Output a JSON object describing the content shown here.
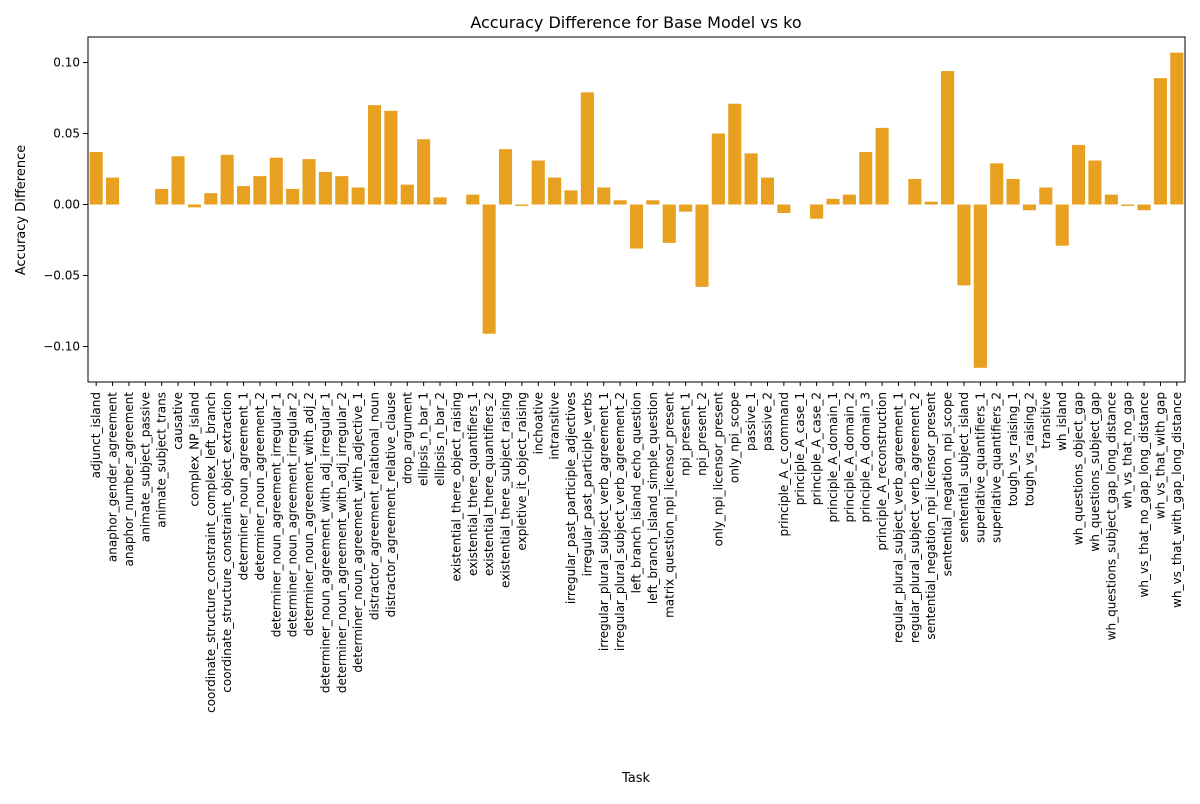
{
  "chart_data": {
    "type": "bar",
    "title": "Accuracy Difference for Base Model vs ko",
    "xlabel": "Task",
    "ylabel": "Accuracy Difference",
    "ylim": [
      -0.125,
      0.118
    ],
    "yticks": [
      -0.1,
      -0.05,
      0.0,
      0.05,
      0.1
    ],
    "ytick_labels": [
      "−0.10",
      "−0.05",
      "0.00",
      "0.05",
      "0.10"
    ],
    "grid": false,
    "legend": "none",
    "bar_color": "#e8a021",
    "categories": [
      "adjunct_island",
      "anaphor_gender_agreement",
      "anaphor_number_agreement",
      "animate_subject_passive",
      "animate_subject_trans",
      "causative",
      "complex_NP_island",
      "coordinate_structure_constraint_complex_left_branch",
      "coordinate_structure_constraint_object_extraction",
      "determiner_noun_agreement_1",
      "determiner_noun_agreement_2",
      "determiner_noun_agreement_irregular_1",
      "determiner_noun_agreement_irregular_2",
      "determiner_noun_agreement_with_adj_2",
      "determiner_noun_agreement_with_adj_irregular_1",
      "determiner_noun_agreement_with_adj_irregular_2",
      "determiner_noun_agreement_with_adjective_1",
      "distractor_agreement_relational_noun",
      "distractor_agreement_relative_clause",
      "drop_argument",
      "ellipsis_n_bar_1",
      "ellipsis_n_bar_2",
      "existential_there_object_raising",
      "existential_there_quantifiers_1",
      "existential_there_quantifiers_2",
      "existential_there_subject_raising",
      "expletive_it_object_raising",
      "inchoative",
      "intransitive",
      "irregular_past_participle_adjectives",
      "irregular_past_participle_verbs",
      "irregular_plural_subject_verb_agreement_1",
      "irregular_plural_subject_verb_agreement_2",
      "left_branch_island_echo_question",
      "left_branch_island_simple_question",
      "matrix_question_npi_licensor_present",
      "npi_present_1",
      "npi_present_2",
      "only_npi_licensor_present",
      "only_npi_scope",
      "passive_1",
      "passive_2",
      "principle_A_c_command",
      "principle_A_case_1",
      "principle_A_case_2",
      "principle_A_domain_1",
      "principle_A_domain_2",
      "principle_A_domain_3",
      "principle_A_reconstruction",
      "regular_plural_subject_verb_agreement_1",
      "regular_plural_subject_verb_agreement_2",
      "sentential_negation_npi_licensor_present",
      "sentential_negation_npi_scope",
      "sentential_subject_island",
      "superlative_quantifiers_1",
      "superlative_quantifiers_2",
      "tough_vs_raising_1",
      "tough_vs_raising_2",
      "transitive",
      "wh_island",
      "wh_questions_object_gap",
      "wh_questions_subject_gap",
      "wh_questions_subject_gap_long_distance",
      "wh_vs_that_no_gap",
      "wh_vs_that_no_gap_long_distance",
      "wh_vs_that_with_gap",
      "wh_vs_that_with_gap_long_distance"
    ],
    "values": [
      0.037,
      0.019,
      0.0,
      0.0,
      0.011,
      0.034,
      -0.002,
      0.008,
      0.035,
      0.013,
      0.02,
      0.033,
      0.011,
      0.032,
      0.023,
      0.02,
      0.012,
      0.07,
      0.066,
      0.014,
      0.046,
      0.005,
      0.0,
      0.007,
      -0.091,
      0.039,
      -0.001,
      0.031,
      0.019,
      0.01,
      0.079,
      0.012,
      0.003,
      -0.031,
      0.003,
      -0.027,
      -0.005,
      -0.058,
      0.05,
      0.071,
      0.036,
      0.019,
      -0.006,
      0.0,
      -0.01,
      0.004,
      0.007,
      0.037,
      0.054,
      0.0,
      0.018,
      0.002,
      0.094,
      -0.057,
      -0.115,
      0.029,
      0.018,
      -0.004,
      0.012,
      -0.029,
      0.042,
      0.031,
      0.007,
      -0.001,
      -0.004,
      0.089,
      0.107
    ]
  }
}
